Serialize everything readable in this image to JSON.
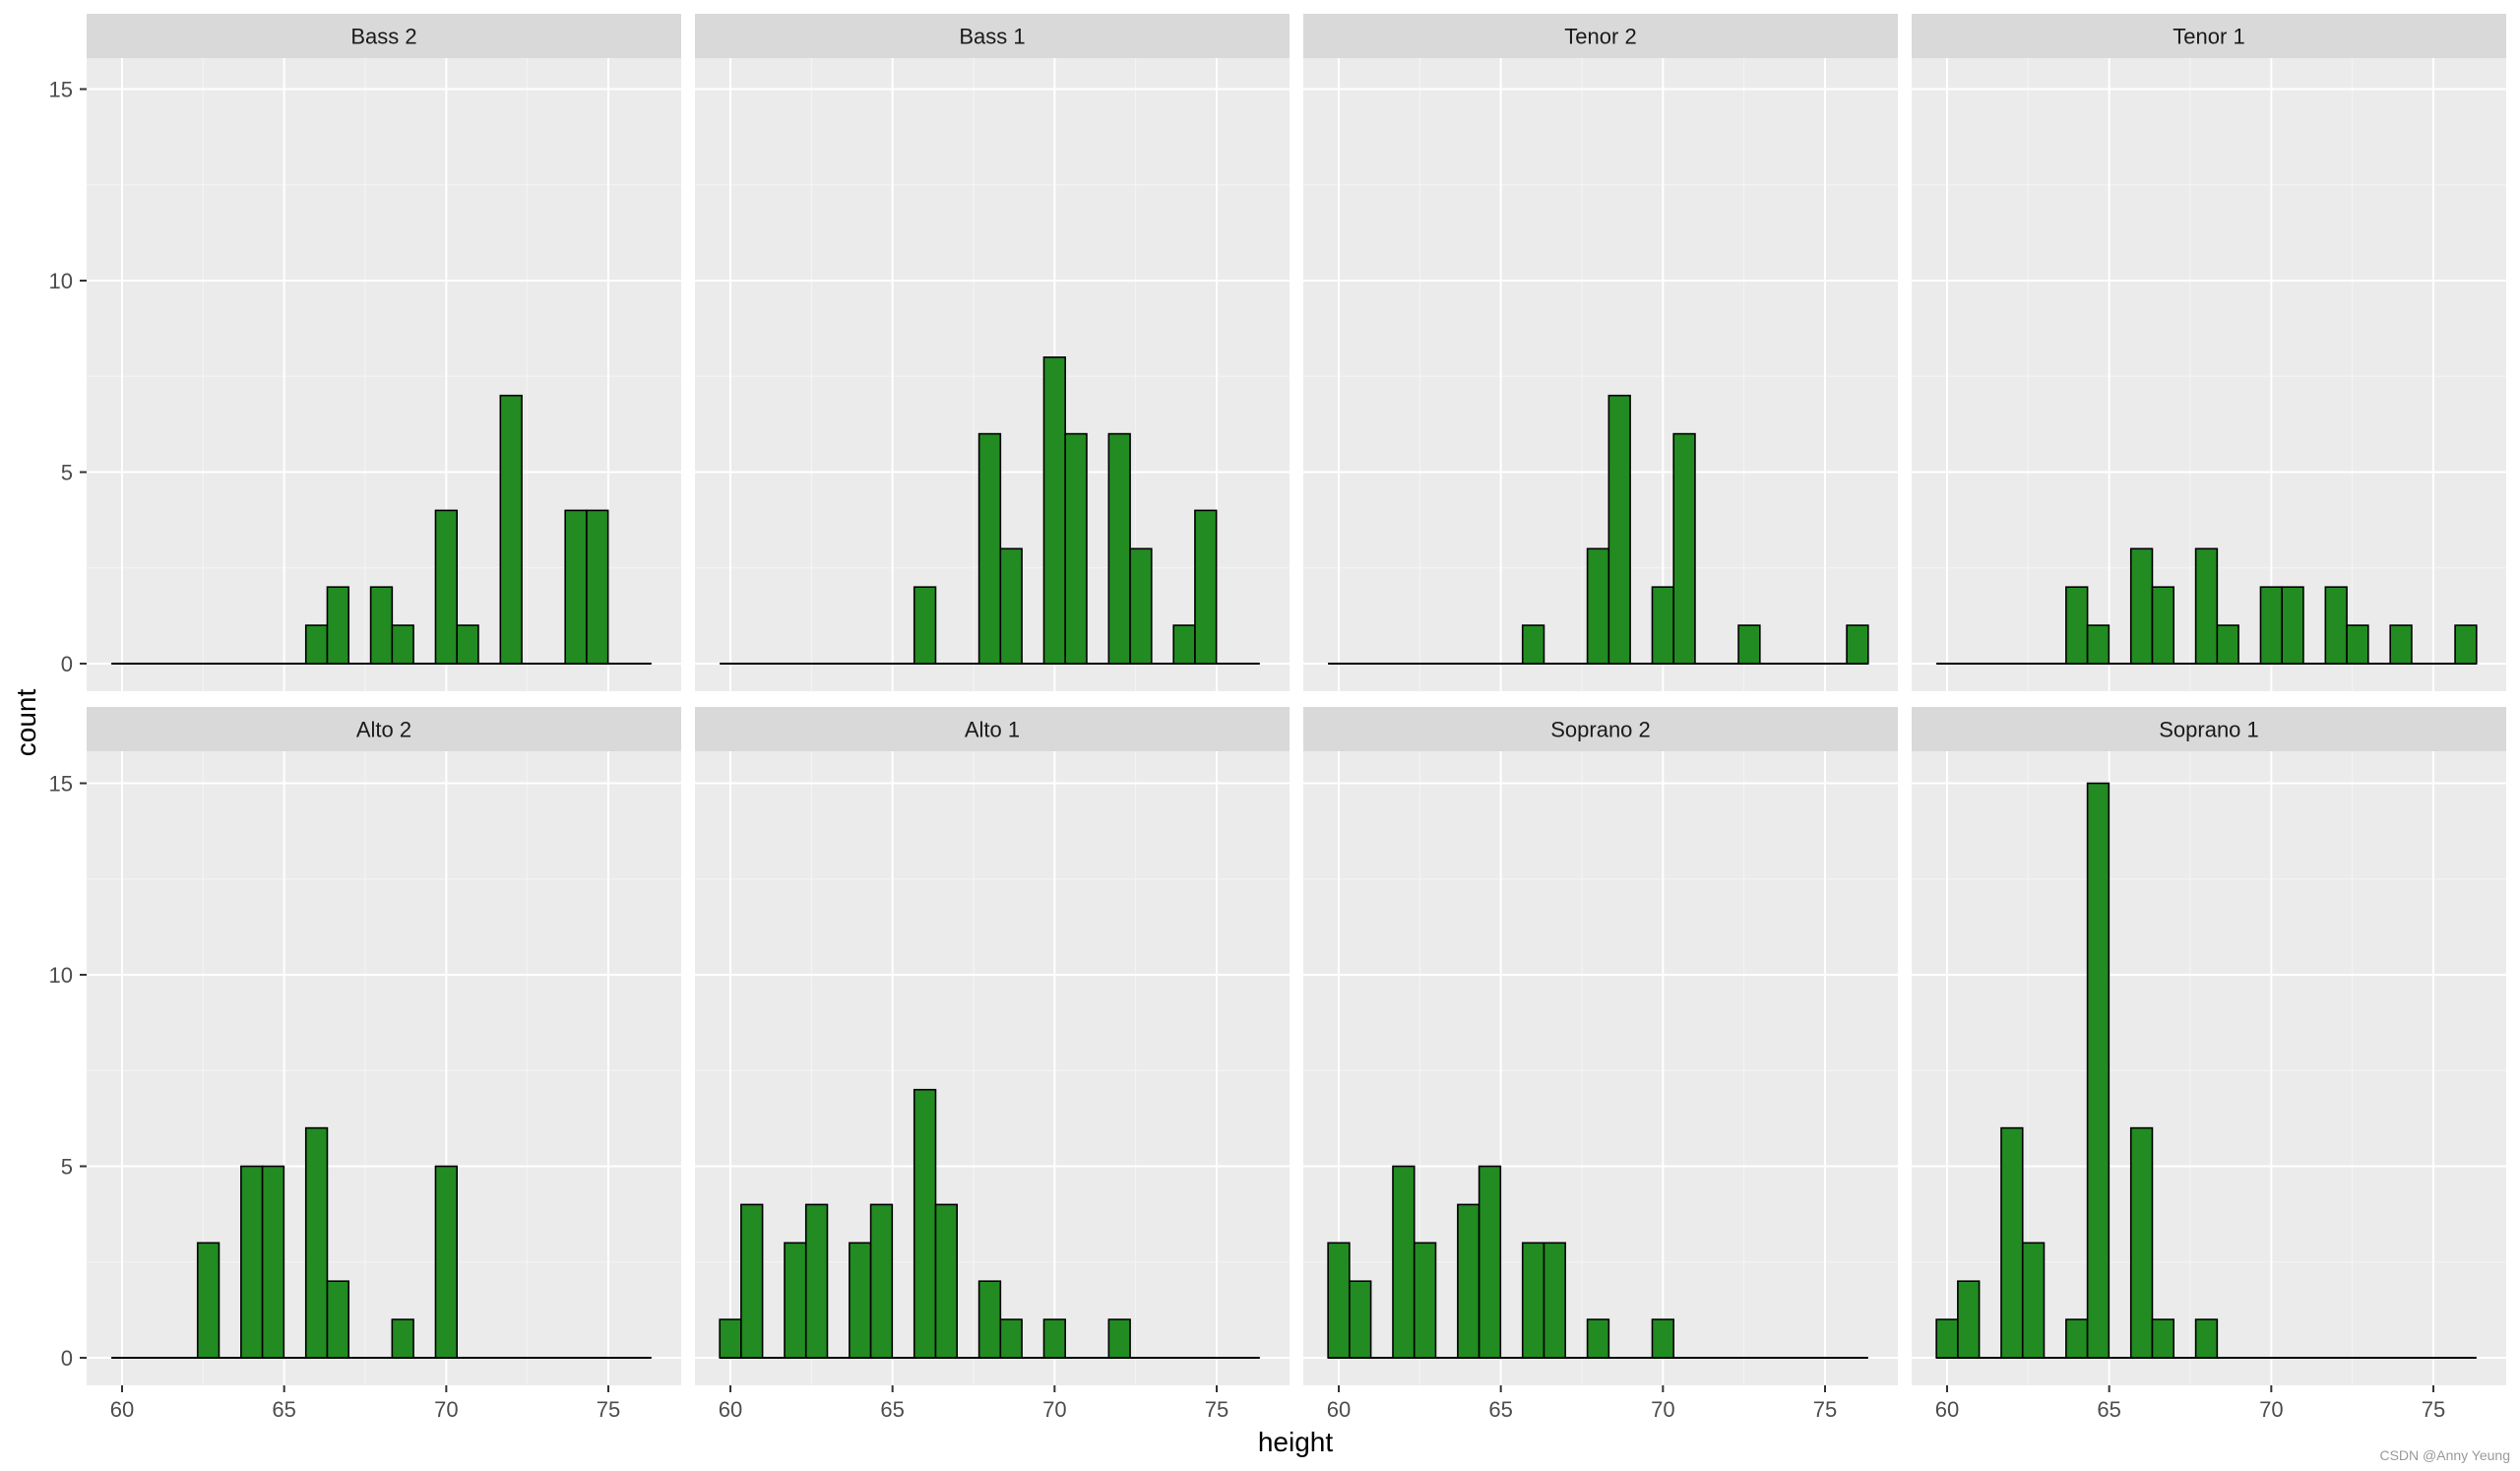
{
  "chart_data": {
    "type": "bar",
    "kind": "faceted-histogram",
    "xlabel": "height",
    "ylabel": "count",
    "xlim": [
      59.5,
      76.5
    ],
    "ylim": [
      0,
      15.5
    ],
    "x_ticks": [
      60,
      65,
      70,
      75
    ],
    "y_ticks": [
      0,
      5,
      10,
      15
    ],
    "bin_width": 0.66,
    "facet_layout": "2 rows x 4 columns",
    "grid": true,
    "colors": {
      "bar_fill": "#228B22",
      "bar_stroke": "#000000",
      "panel_bg": "#EBEBEB",
      "strip_bg": "#D9D9D9",
      "grid": "#FFFFFF"
    },
    "panels": [
      {
        "title": "Bass 2",
        "bars": [
          {
            "x": 66,
            "count": 1
          },
          {
            "x": 66.66,
            "count": 2
          },
          {
            "x": 68,
            "count": 2
          },
          {
            "x": 68.66,
            "count": 1
          },
          {
            "x": 70,
            "count": 4
          },
          {
            "x": 70.66,
            "count": 1
          },
          {
            "x": 72,
            "count": 7
          },
          {
            "x": 74,
            "count": 4
          },
          {
            "x": 74.66,
            "count": 4
          }
        ]
      },
      {
        "title": "Bass 1",
        "bars": [
          {
            "x": 66,
            "count": 2
          },
          {
            "x": 68,
            "count": 6
          },
          {
            "x": 68.66,
            "count": 3
          },
          {
            "x": 70,
            "count": 8
          },
          {
            "x": 70.66,
            "count": 6
          },
          {
            "x": 72,
            "count": 6
          },
          {
            "x": 72.66,
            "count": 3
          },
          {
            "x": 74,
            "count": 1
          },
          {
            "x": 74.66,
            "count": 4
          }
        ]
      },
      {
        "title": "Tenor 2",
        "bars": [
          {
            "x": 66,
            "count": 1
          },
          {
            "x": 68,
            "count": 3
          },
          {
            "x": 68.66,
            "count": 7
          },
          {
            "x": 70,
            "count": 2
          },
          {
            "x": 70.66,
            "count": 6
          },
          {
            "x": 72.66,
            "count": 1
          },
          {
            "x": 76,
            "count": 1
          }
        ]
      },
      {
        "title": "Tenor 1",
        "bars": [
          {
            "x": 64,
            "count": 2
          },
          {
            "x": 64.66,
            "count": 1
          },
          {
            "x": 66,
            "count": 3
          },
          {
            "x": 66.66,
            "count": 2
          },
          {
            "x": 68,
            "count": 3
          },
          {
            "x": 68.66,
            "count": 1
          },
          {
            "x": 70,
            "count": 2
          },
          {
            "x": 70.66,
            "count": 2
          },
          {
            "x": 72,
            "count": 2
          },
          {
            "x": 72.66,
            "count": 1
          },
          {
            "x": 74,
            "count": 1
          },
          {
            "x": 76,
            "count": 1
          }
        ]
      },
      {
        "title": "Alto 2",
        "bars": [
          {
            "x": 62.66,
            "count": 3
          },
          {
            "x": 64,
            "count": 5
          },
          {
            "x": 64.66,
            "count": 5
          },
          {
            "x": 66,
            "count": 6
          },
          {
            "x": 66.66,
            "count": 2
          },
          {
            "x": 68.66,
            "count": 1
          },
          {
            "x": 70,
            "count": 5
          }
        ]
      },
      {
        "title": "Alto 1",
        "bars": [
          {
            "x": 60,
            "count": 1
          },
          {
            "x": 60.66,
            "count": 4
          },
          {
            "x": 62,
            "count": 3
          },
          {
            "x": 62.66,
            "count": 4
          },
          {
            "x": 64,
            "count": 3
          },
          {
            "x": 64.66,
            "count": 4
          },
          {
            "x": 66,
            "count": 7
          },
          {
            "x": 66.66,
            "count": 4
          },
          {
            "x": 68,
            "count": 2
          },
          {
            "x": 68.66,
            "count": 1
          },
          {
            "x": 70,
            "count": 1
          },
          {
            "x": 72,
            "count": 1
          }
        ]
      },
      {
        "title": "Soprano 2",
        "bars": [
          {
            "x": 60,
            "count": 3
          },
          {
            "x": 60.66,
            "count": 2
          },
          {
            "x": 62,
            "count": 5
          },
          {
            "x": 62.66,
            "count": 3
          },
          {
            "x": 64,
            "count": 4
          },
          {
            "x": 64.66,
            "count": 5
          },
          {
            "x": 66,
            "count": 3
          },
          {
            "x": 66.66,
            "count": 3
          },
          {
            "x": 68,
            "count": 1
          },
          {
            "x": 70,
            "count": 1
          }
        ]
      },
      {
        "title": "Soprano 1",
        "bars": [
          {
            "x": 60,
            "count": 1
          },
          {
            "x": 60.66,
            "count": 2
          },
          {
            "x": 62,
            "count": 6
          },
          {
            "x": 62.66,
            "count": 3
          },
          {
            "x": 64,
            "count": 1
          },
          {
            "x": 64.66,
            "count": 15
          },
          {
            "x": 66,
            "count": 6
          },
          {
            "x": 66.66,
            "count": 1
          },
          {
            "x": 68,
            "count": 1
          }
        ]
      }
    ]
  },
  "watermark": "CSDN @Anny Yeung"
}
